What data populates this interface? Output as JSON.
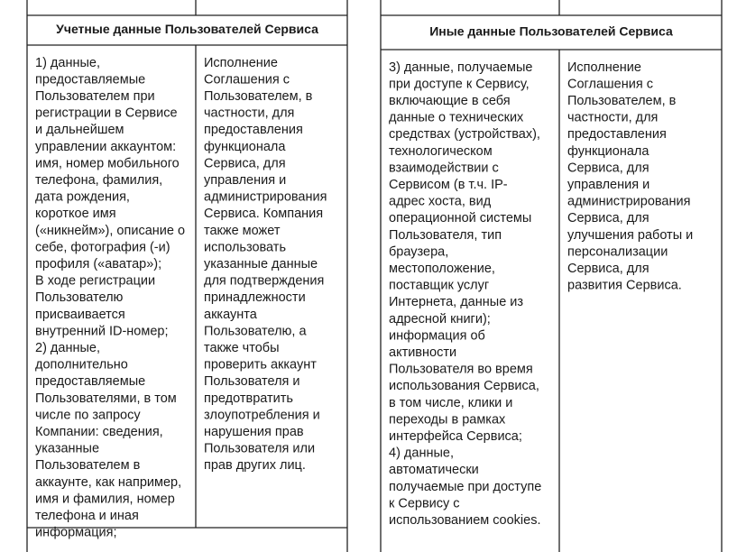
{
  "tables": [
    {
      "header": "Учетные данные Пользователей Сервиса",
      "cells": [
        [
          "1) данные,",
          "предоставляемые",
          "Пользователем при",
          "регистрации в Сервисе",
          "и дальнейшем",
          "управлении аккаунтом:",
          "имя, номер мобильного",
          "телефона, фамилия,",
          "дата рождения,",
          "короткое имя",
          "(«никнейм»), описание о",
          "себе, фотография (-и)",
          "профиля («аватар»);",
          "В ходе регистрации",
          "Пользователю",
          "присваивается",
          "внутренний ID-номер;",
          "2) данные,",
          "дополнительно",
          "предоставляемые",
          "Пользователями, в том",
          "числе по запросу",
          "Компании: сведения,",
          "указанные",
          "Пользователем в",
          "аккаунте, как например,",
          "имя и фамилия, номер",
          "телефона и иная",
          "информация;"
        ],
        [
          "Исполнение",
          "Соглашения с",
          "Пользователем, в",
          "частности, для",
          "предоставления",
          "функционала",
          "Сервиса, для",
          "управления и",
          "администрирования",
          "Сервиса. Компания",
          "также может",
          "использовать",
          "указанные данные",
          "для подтверждения",
          "принадлежности",
          "аккаунта",
          "Пользователю, а",
          "также чтобы",
          "проверить аккаунт",
          "Пользователя и",
          "предотвратить",
          "злоупотребления и",
          "нарушения прав",
          "Пользователя или",
          "прав других лиц."
        ]
      ]
    },
    {
      "header": "Иные данные Пользователей Сервиса",
      "cells": [
        [
          "3) данные, получаемые",
          "при доступе к Сервису,",
          "включающие в себя",
          "данные о технических",
          "средствах (устройствах),",
          "технологическом",
          "взаимодействии с",
          "Сервисом (в т.ч. IP-",
          "адрес хоста, вид",
          "операционной системы",
          "Пользователя, тип",
          "браузера,",
          "местоположение,",
          "поставщик услуг",
          "Интернета, данные из",
          "адресной книги);",
          "информация об",
          "активности",
          "Пользователя во время",
          "использования Сервиса,",
          "в том числе, клики и",
          "переходы в рамках",
          "интерфейса Сервиса;",
          "4) данные,",
          "автоматически",
          "получаемые при доступе",
          "к Сервису с",
          "использованием cookies."
        ],
        [
          "Исполнение",
          "Соглашения с",
          "Пользователем, в",
          "частности, для",
          "предоставления",
          "функционала",
          "Сервиса, для",
          "управления и",
          "администрирования",
          "Сервиса, для",
          "улучшения работы и",
          "персонализации",
          "Сервиса, для",
          "развития Сервиса."
        ]
      ]
    }
  ]
}
